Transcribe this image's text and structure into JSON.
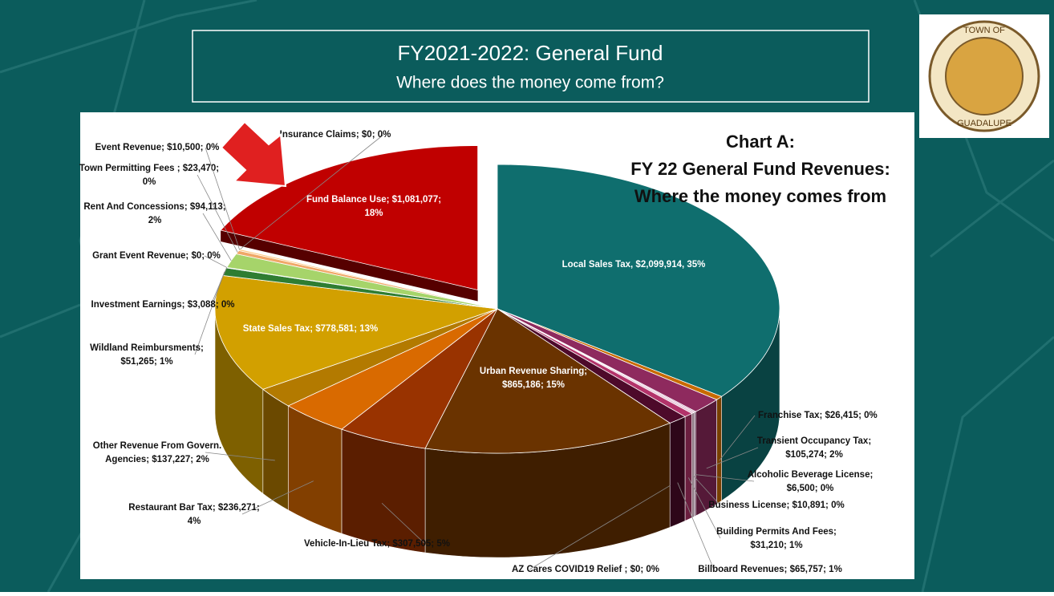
{
  "slide_title": "FY2021-2022: General Fund",
  "slide_subtitle": "Where does the money come from?",
  "logo": {
    "top": "TOWN OF",
    "bottom": "GUADALUPE"
  },
  "chart_data": {
    "type": "pie",
    "title": [
      "Chart A:",
      "FY 22 General Fund Revenues:",
      "Where the money comes from"
    ],
    "values": [
      2099914,
      26415,
      105274,
      6500,
      10891,
      31210,
      65757,
      0,
      865186,
      307505,
      236271,
      137227,
      778581,
      51265,
      3088,
      0,
      94113,
      23470,
      10500,
      0,
      1081077
    ],
    "value_labels": [
      [
        "Local Sales Tax, $2,099,914, 35%"
      ],
      [
        "Franchise Tax; $26,415; 0%"
      ],
      [
        "Transient Occupancy Tax;",
        "$105,274; 2%"
      ],
      [
        "Alcoholic Beverage License;",
        "$6,500; 0%"
      ],
      [
        "Business License; $10,891; 0%"
      ],
      [
        "Building Permits And Fees;",
        "$31,210; 1%"
      ],
      [
        "Billboard Revenues; $65,757; 1%"
      ],
      [
        "AZ Cares COVID19 Relief ; $0; 0%"
      ],
      [
        "Urban Revenue Sharing;",
        "$865,186; 15%"
      ],
      [
        "Vehicle-In-Lieu Tax; $307,505; 5%"
      ],
      [
        "Restaurant Bar Tax; $236,271;",
        "4%"
      ],
      [
        "Other Revenue From Govern.",
        "Agencies; $137,227; 2%"
      ],
      [
        "State Sales Tax; $778,581; 13%"
      ],
      [
        "Wildland Reimbursments;",
        "$51,265; 1%"
      ],
      [
        "Investment Earnings; $3,088; 0%"
      ],
      [
        "Grant Event Revenue; $0; 0%"
      ],
      [
        "Rent And Concessions; $94,113;",
        "2%"
      ],
      [
        "Town Permitting Fees ; $23,470;",
        "0%"
      ],
      [
        "Event Revenue; $10,500; 0%"
      ],
      [
        "Insurance Claims; $0; 0%"
      ],
      [
        "Fund Balance Use; $1,081,077;",
        "18%"
      ]
    ],
    "colors": [
      "#0f6e6e",
      "#c86a00",
      "#8e2a5e",
      "#c98fb4",
      "#e6c3d6",
      "#b3336a",
      "#4d0a2a",
      "#bbbbbb",
      "#6a3300",
      "#993300",
      "#d96a00",
      "#b37a00",
      "#d2a000",
      "#2f7d32",
      "#4caf50",
      "#7fc443",
      "#a6d46a",
      "#f0a868",
      "#ffc980",
      "#ffffff",
      "#c00000"
    ],
    "explode": [
      20
    ]
  }
}
